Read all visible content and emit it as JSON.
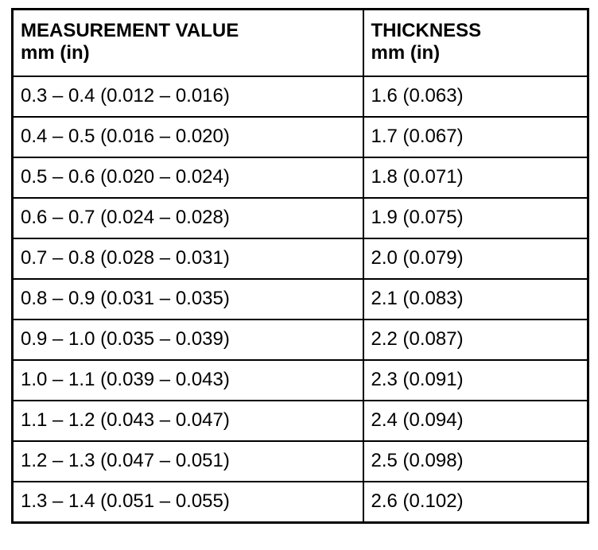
{
  "table": {
    "headers": [
      {
        "title": "MEASUREMENT VALUE",
        "unit": "mm (in)"
      },
      {
        "title": "THICKNESS",
        "unit": "mm (in)"
      }
    ],
    "rows": [
      {
        "measurement": "0.3 – 0.4 (0.012 – 0.016)",
        "thickness": "1.6 (0.063)"
      },
      {
        "measurement": "0.4 – 0.5 (0.016 – 0.020)",
        "thickness": "1.7 (0.067)"
      },
      {
        "measurement": "0.5 – 0.6 (0.020 – 0.024)",
        "thickness": "1.8 (0.071)"
      },
      {
        "measurement": "0.6 – 0.7 (0.024 – 0.028)",
        "thickness": "1.9 (0.075)"
      },
      {
        "measurement": "0.7 – 0.8 (0.028 – 0.031)",
        "thickness": "2.0 (0.079)"
      },
      {
        "measurement": "0.8 – 0.9 (0.031 – 0.035)",
        "thickness": "2.1 (0.083)"
      },
      {
        "measurement": "0.9 – 1.0 (0.035 – 0.039)",
        "thickness": "2.2 (0.087)"
      },
      {
        "measurement": "1.0 – 1.1 (0.039 – 0.043)",
        "thickness": "2.3 (0.091)"
      },
      {
        "measurement": "1.1 – 1.2 (0.043 – 0.047)",
        "thickness": "2.4 (0.094)"
      },
      {
        "measurement": "1.2 – 1.3 (0.047 – 0.051)",
        "thickness": "2.5 (0.098)"
      },
      {
        "measurement": "1.3 – 1.4 (0.051 – 0.055)",
        "thickness": "2.6 (0.102)"
      }
    ],
    "colors": {
      "border": "#000000",
      "text": "#000000",
      "background": "#ffffff"
    }
  }
}
